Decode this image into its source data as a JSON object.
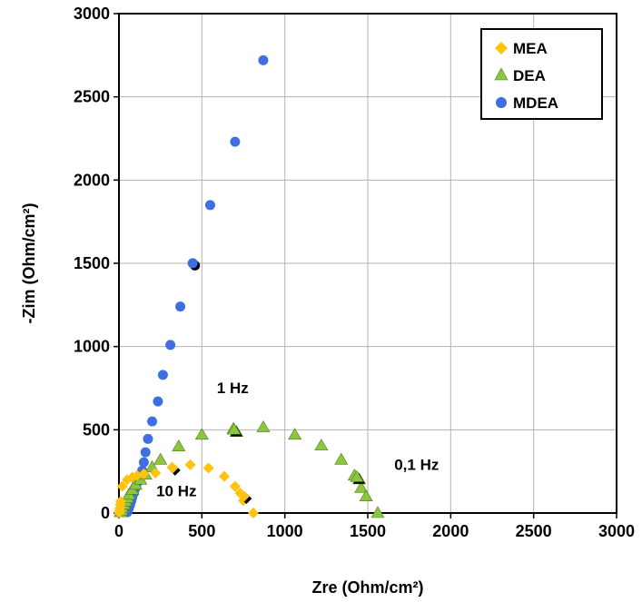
{
  "chart_data": {
    "type": "scatter",
    "xlabel": "Zre (Ohm/cm²)",
    "ylabel": "-Zim (Ohm/cm²)",
    "xlim": [
      0,
      3000
    ],
    "ylim": [
      0,
      3000
    ],
    "xticks": [
      "0",
      "500",
      "1000",
      "1500",
      "2000",
      "2500",
      "3000"
    ],
    "yticks": [
      "0",
      "500",
      "1000",
      "1500",
      "2000",
      "2500",
      "3000"
    ],
    "grid": true,
    "legend_position": "top-right",
    "annotations": [
      {
        "text": "1 Hz",
        "x": 590,
        "y": 720
      },
      {
        "text": "10 Hz",
        "x": 225,
        "y": 100
      },
      {
        "text": "0,1 Hz",
        "x": 1660,
        "y": 260
      }
    ],
    "series": [
      {
        "name": "MEA",
        "marker": "diamond",
        "color": "#FFC20E",
        "points": [
          [
            2,
            3
          ],
          [
            4,
            15
          ],
          [
            6,
            30
          ],
          [
            8,
            50
          ],
          [
            10,
            70
          ],
          [
            20,
            160
          ],
          [
            50,
            200
          ],
          [
            80,
            215
          ],
          [
            110,
            225
          ],
          [
            150,
            235
          ],
          [
            220,
            240
          ],
          [
            320,
            275
          ],
          [
            430,
            290
          ],
          [
            540,
            270
          ],
          [
            635,
            220
          ],
          [
            700,
            160
          ],
          [
            730,
            120
          ],
          [
            750,
            75
          ],
          [
            810,
            0
          ]
        ],
        "marked_points": [
          [
            330,
            265
          ],
          [
            760,
            95
          ]
        ]
      },
      {
        "name": "DEA",
        "marker": "triangle",
        "color": "#8CC63F",
        "points": [
          [
            10,
            5
          ],
          [
            15,
            15
          ],
          [
            20,
            30
          ],
          [
            30,
            50
          ],
          [
            40,
            70
          ],
          [
            50,
            90
          ],
          [
            60,
            110
          ],
          [
            80,
            140
          ],
          [
            100,
            170
          ],
          [
            130,
            200
          ],
          [
            160,
            230
          ],
          [
            200,
            275
          ],
          [
            250,
            320
          ],
          [
            360,
            400
          ],
          [
            500,
            470
          ],
          [
            690,
            505
          ],
          [
            870,
            515
          ],
          [
            1060,
            470
          ],
          [
            1220,
            405
          ],
          [
            1340,
            320
          ],
          [
            1420,
            225
          ],
          [
            1460,
            150
          ],
          [
            1490,
            100
          ],
          [
            1560,
            0
          ]
        ],
        "marked_points": [
          [
            700,
            495
          ],
          [
            1440,
            210
          ]
        ]
      },
      {
        "name": "MDEA",
        "marker": "circle",
        "color": "#3D6FE3",
        "points": [
          [
            50,
            5
          ],
          [
            55,
            15
          ],
          [
            60,
            30
          ],
          [
            65,
            45
          ],
          [
            70,
            60
          ],
          [
            75,
            75
          ],
          [
            80,
            95
          ],
          [
            90,
            120
          ],
          [
            100,
            150
          ],
          [
            110,
            180
          ],
          [
            125,
            215
          ],
          [
            140,
            255
          ],
          [
            150,
            305
          ],
          [
            160,
            365
          ],
          [
            175,
            445
          ],
          [
            200,
            550
          ],
          [
            235,
            670
          ],
          [
            265,
            830
          ],
          [
            310,
            1010
          ],
          [
            370,
            1240
          ],
          [
            445,
            1500
          ],
          [
            550,
            1850
          ],
          [
            700,
            2230
          ],
          [
            870,
            2720
          ]
        ],
        "marked_points": [
          [
            450,
            1495
          ]
        ]
      }
    ]
  }
}
